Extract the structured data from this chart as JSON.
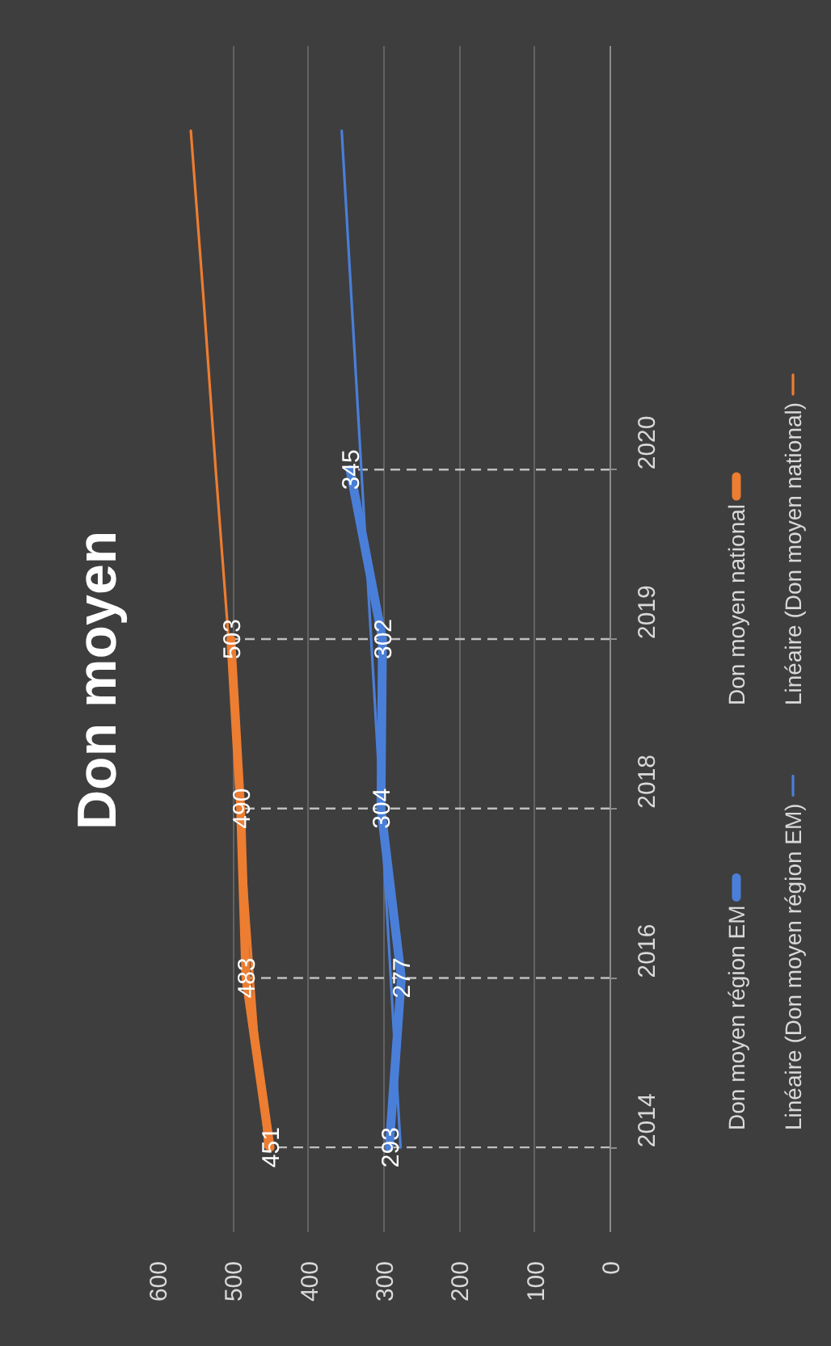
{
  "chart_data": {
    "type": "line",
    "orientation": "horizontal",
    "title": "Don moyen",
    "categories": [
      null,
      null,
      "2020",
      "2019",
      "2018",
      "2016",
      "2014"
    ],
    "series": [
      {
        "name": "Don moyen région EM",
        "color": "#4a7fd9",
        "values": [
          null,
          null,
          345,
          302,
          304,
          277,
          293
        ],
        "value_labels": [
          null,
          null,
          "345",
          "302",
          "304",
          "277",
          "293"
        ]
      },
      {
        "name": "Don moyen national",
        "color": "#ed7d31",
        "values": [
          null,
          null,
          null,
          503,
          490,
          483,
          451
        ],
        "value_labels": [
          null,
          null,
          null,
          "503",
          "490",
          "483",
          "451"
        ]
      },
      {
        "name": "Linéaire (Don moyen région EM)",
        "color": "#4a7fd9",
        "values": [
          356,
          343,
          330,
          317,
          304,
          291,
          278
        ]
      },
      {
        "name": "Linéaire (Don moyen national)",
        "color": "#ed7d31",
        "values": [
          556,
          539,
          523,
          506,
          490,
          474,
          457
        ]
      }
    ],
    "xlim": [
      600,
      0
    ],
    "xticks": [
      600,
      500,
      400,
      300,
      200,
      100,
      0
    ],
    "grid": "x",
    "legend": "right",
    "ref_lines": [
      {
        "axis": "y",
        "value": "2020",
        "color": "#bfbfbf",
        "line_style": "dashed"
      },
      {
        "axis": "y",
        "value": "2019",
        "color": "#bfbfbf",
        "line_style": "dashed"
      },
      {
        "axis": "y",
        "value": "2018",
        "color": "#bfbfbf",
        "line_style": "dashed"
      },
      {
        "axis": "y",
        "value": "2016",
        "color": "#bfbfbf",
        "line_style": "dashed"
      },
      {
        "axis": "y",
        "value": "2014",
        "color": "#bfbfbf",
        "line_style": "dashed"
      }
    ]
  }
}
